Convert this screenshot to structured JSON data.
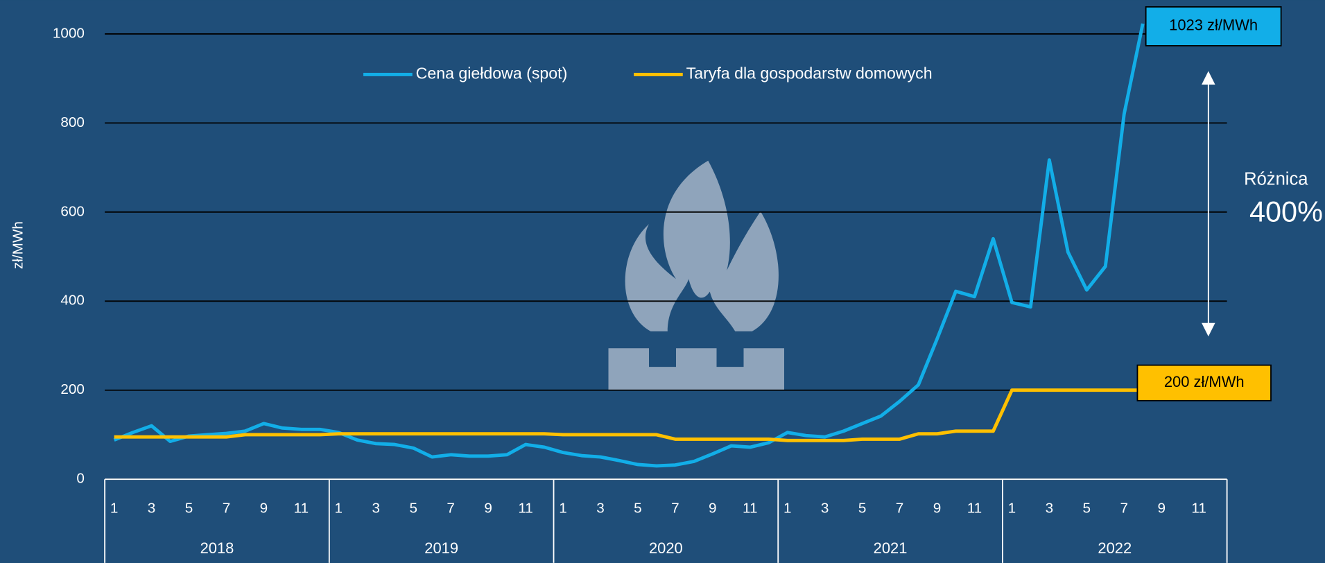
{
  "chart_data": {
    "type": "line",
    "ylabel": "zł/MWh",
    "ylim": [
      0,
      1000
    ],
    "yticks": [
      0,
      200,
      400,
      600,
      800,
      1000
    ],
    "grid": true,
    "categories": [
      "1",
      null,
      "3",
      null,
      "5",
      null,
      "7",
      null,
      "9",
      null,
      "11",
      null,
      "1",
      null,
      "3",
      null,
      "5",
      null,
      "7",
      null,
      "9",
      null,
      "11",
      null,
      "1",
      null,
      "3",
      null,
      "5",
      null,
      "7",
      null,
      "9",
      null,
      "11",
      null,
      "1",
      null,
      "3",
      null,
      "5",
      null,
      "7",
      null,
      "9",
      null,
      "11",
      null,
      "1",
      null,
      "3",
      null,
      "5",
      null,
      "7",
      null,
      "9",
      null,
      "11",
      null
    ],
    "groups": [
      "2018",
      "2019",
      "2020",
      "2021",
      "2022"
    ],
    "legend": "top",
    "series": [
      {
        "name": "Cena giełdowa (spot)",
        "color": "#12aee8",
        "values": [
          88,
          105,
          120,
          85,
          97,
          100,
          103,
          108,
          125,
          115,
          112,
          112,
          105,
          88,
          80,
          78,
          70,
          50,
          55,
          52,
          52,
          55,
          78,
          72,
          60,
          53,
          50,
          42,
          33,
          30,
          32,
          40,
          57,
          75,
          72,
          82,
          105,
          98,
          95,
          108,
          125,
          142,
          175,
          212,
          315,
          422,
          410,
          540,
          397,
          387,
          717,
          510,
          425,
          478,
          820,
          1023,
          null,
          null,
          null,
          null
        ]
      },
      {
        "name": "Taryfa dla gospodarstw domowych",
        "color": "#ffc000",
        "values": [
          95,
          95,
          95,
          95,
          95,
          95,
          95,
          100,
          100,
          100,
          100,
          100,
          102,
          102,
          102,
          102,
          102,
          102,
          102,
          102,
          102,
          102,
          102,
          102,
          100,
          100,
          100,
          100,
          100,
          100,
          90,
          90,
          90,
          90,
          90,
          90,
          87,
          87,
          87,
          87,
          90,
          90,
          90,
          102,
          102,
          108,
          108,
          108,
          200,
          200,
          200,
          200,
          200,
          200,
          200,
          200,
          null,
          null,
          null,
          null
        ]
      }
    ],
    "annotations": [
      "1023 zł/MWh",
      "200 zł/MWh",
      "Różnica",
      "400%"
    ]
  }
}
